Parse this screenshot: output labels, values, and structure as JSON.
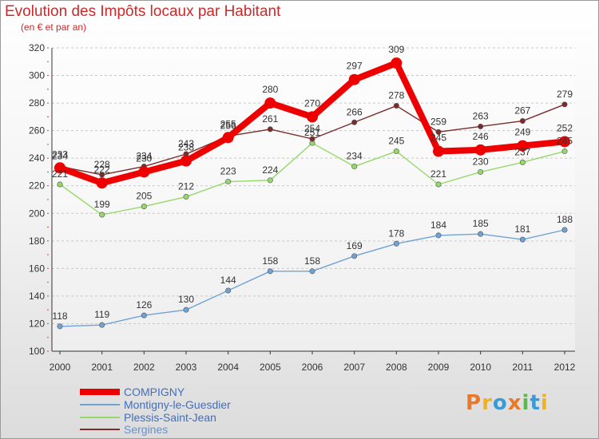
{
  "header": {
    "title": "Evolution des Impôts locaux par Habitant",
    "subtitle": "(en € et par an)"
  },
  "logo": {
    "text": "Proxiti",
    "colors": [
      "#e8792a",
      "#f2b21b",
      "#3b9bd8",
      "#e8792a",
      "#5cb848",
      "#3b9bd8",
      "#f2b21b"
    ]
  },
  "chart_data": {
    "type": "line",
    "x": [
      2000,
      2001,
      2002,
      2003,
      2004,
      2005,
      2006,
      2007,
      2008,
      2009,
      2010,
      2011,
      2012
    ],
    "xlabel": "",
    "ylabel": "",
    "ylim": [
      100,
      320
    ],
    "yticks": [
      100,
      120,
      140,
      160,
      180,
      200,
      220,
      240,
      260,
      280,
      300,
      320
    ],
    "grid": "horizontal dashed",
    "legend_position": "bottom-left",
    "series": [
      {
        "name": "COMPIGNY",
        "color": "#ee0000",
        "values": [
          233,
          222,
          230,
          238,
          255,
          280,
          270,
          297,
          309,
          245,
          246,
          249,
          252
        ],
        "labels": [
          "233",
          "222",
          "230",
          "238",
          "255",
          "280",
          "270",
          "297",
          "309",
          "245",
          "246",
          "249",
          "252"
        ]
      },
      {
        "name": "Montigny-le-Guesdier",
        "color": "#6fa3d6",
        "values": [
          118,
          119,
          126,
          130,
          144,
          158,
          158,
          169,
          178,
          184,
          185,
          181,
          188
        ],
        "labels": [
          "118",
          "119",
          "126",
          "130",
          "144",
          "158",
          "158",
          "169",
          "178",
          "184",
          "185",
          "181",
          "188"
        ]
      },
      {
        "name": "Plessis-Saint-Jean",
        "color": "#96d86a",
        "values": [
          221,
          199,
          205,
          212,
          223,
          224,
          251,
          234,
          245,
          221,
          230,
          237,
          245
        ],
        "labels": [
          "221",
          "199",
          "205",
          "212",
          "223",
          "224",
          "251",
          "234",
          "245",
          "221",
          "230",
          "237",
          "245"
        ]
      },
      {
        "name": "Sergines",
        "color": "#7a2b2b",
        "values": [
          234,
          228,
          234,
          243,
          256,
          261,
          254,
          266,
          278,
          259,
          263,
          267,
          279
        ],
        "labels": [
          "234",
          "228",
          "234",
          "243",
          "256",
          "261",
          "254",
          "266",
          "278",
          "259",
          "263",
          "267",
          "279"
        ]
      }
    ]
  }
}
